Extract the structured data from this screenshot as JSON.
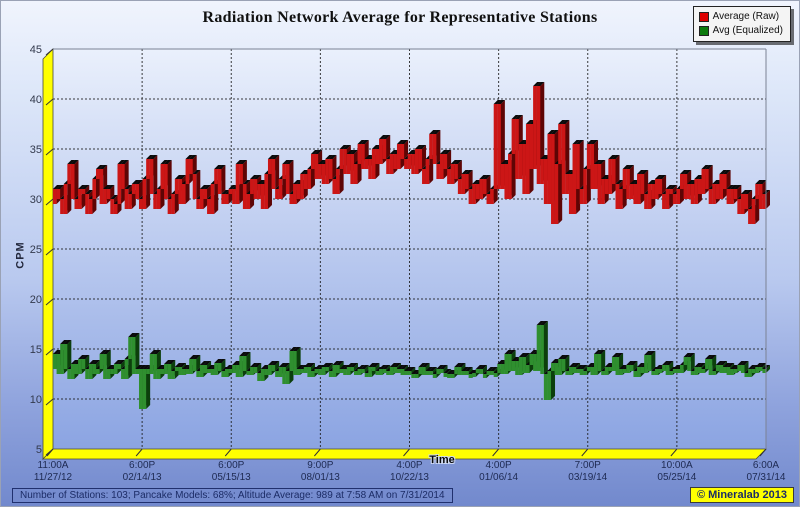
{
  "status_bar": {
    "text": "Number of Stations: 103; Pancake Models: 68%; Altitude Average: 989 at 7:58 AM on 7/31/2014"
  },
  "copyright_badge": {
    "text": "© Mineralab 2013"
  },
  "colors": {
    "wall_yellow": "#ffff00",
    "wall_stroke": "#4a4a3a",
    "plot_grad_top": "#eaf0fc",
    "plot_grad_bottom": "#8ba4e2",
    "grid": "#1a1a1a",
    "cap_black": "#0a0a0a",
    "border_gray": "#7b8294",
    "y_label_color": "#333a4d",
    "x_label_color": "#1e2a52"
  },
  "chart_data": {
    "type": "line",
    "style": "3d-step-ribbon",
    "title": "Radiation Network Average for Representative Stations",
    "xlabel": "Time",
    "ylabel": "CPM",
    "ylim": [
      5,
      45
    ],
    "grid": true,
    "legend_position": "top-right",
    "y_ticks": [
      5,
      10,
      15,
      20,
      25,
      30,
      35,
      40,
      45
    ],
    "x_ticks": [
      {
        "time": "11:00A",
        "date": "11/27/12"
      },
      {
        "time": "6:00P",
        "date": "02/14/13"
      },
      {
        "time": "6:00P",
        "date": "05/15/13"
      },
      {
        "time": "9:00P",
        "date": "08/01/13"
      },
      {
        "time": "4:00P",
        "date": "10/22/13"
      },
      {
        "time": "4:00P",
        "date": "01/06/14"
      },
      {
        "time": "7:00P",
        "date": "03/19/14"
      },
      {
        "time": "10:00A",
        "date": "05/25/14"
      },
      {
        "time": "6:00A",
        "date": "07/31/14"
      }
    ],
    "series": [
      {
        "name": "Average (Raw)",
        "legend_color": "#dd0000",
        "color": "#cc1616",
        "dark": "#5e0505",
        "values": [
          29.5,
          31,
          30,
          28.5,
          31.5,
          33.5,
          30,
          29,
          31,
          30.5,
          28.5,
          30,
          32,
          33,
          29.5,
          31,
          30,
          28.5,
          29.5,
          33.5,
          31,
          29,
          30.5,
          31.5,
          30,
          29,
          32,
          34,
          30.5,
          29,
          31,
          33.5,
          30,
          28.5,
          30.5,
          32,
          29.5,
          31.5,
          34,
          32.5,
          30,
          29,
          31,
          30,
          28.5,
          31.5,
          33,
          30.5,
          29.5,
          30.5,
          31,
          29.5,
          33.5,
          31.5,
          29,
          30.5,
          32,
          30,
          31.5,
          29,
          32.5,
          34,
          31,
          30,
          32,
          33.5,
          30.5,
          29.5,
          31.5,
          30,
          32.5,
          31,
          33,
          34.5,
          32,
          33.5,
          31.5,
          34,
          32,
          30.5,
          33,
          35,
          32.5,
          34.5,
          31.5,
          33.5,
          35.5,
          33,
          34,
          32,
          35,
          33.5,
          36,
          34,
          32.5,
          34.5,
          33,
          35.5,
          34,
          33,
          34.5,
          32.5,
          35,
          33,
          31.5,
          34,
          36.5,
          33.5,
          32,
          34.5,
          33,
          31.5,
          33.5,
          32,
          30.5,
          32.5,
          31,
          29.5,
          31.5,
          30,
          32,
          30.5,
          29.5,
          31,
          39.5,
          31,
          33.5,
          30,
          34.5,
          38,
          32,
          35.5,
          30.5,
          37.5,
          33,
          41.3,
          31.5,
          34,
          29.5,
          36.5,
          27.5,
          33.5,
          37.5,
          30.5,
          32.5,
          28.5,
          35.5,
          31,
          29.5,
          33,
          35.5,
          31,
          33.5,
          29.5,
          32,
          30.5,
          34,
          31.5,
          29,
          31,
          33,
          30,
          31.5,
          29.5,
          32.5,
          30.5,
          29,
          31.5,
          30,
          32,
          30.5,
          29,
          31,
          30.5,
          29.5,
          31,
          32.5,
          30,
          31.5,
          29.5,
          32,
          30.5,
          33,
          31,
          29.5,
          31.5,
          30,
          32.5,
          31,
          29.5,
          31,
          30,
          28.5,
          30.5,
          29,
          27.5,
          30,
          31.5,
          29,
          30.5
        ]
      },
      {
        "name": "Avg (Equalized)",
        "legend_color": "#0c7a0c",
        "color": "#2f8f2f",
        "dark": "#0c3f0c",
        "values": [
          13,
          14.5,
          12.5,
          15.5,
          13,
          12,
          13.5,
          12.5,
          14,
          13,
          12,
          13.5,
          12.5,
          13,
          14.5,
          12,
          13,
          12.5,
          13.5,
          13,
          12,
          14,
          16.2,
          12.5,
          13,
          9,
          13,
          12.5,
          14.5,
          12,
          13,
          12.5,
          13.5,
          12,
          12.8,
          13.2,
          12.4,
          13,
          12.5,
          14,
          12.8,
          12.2,
          13.4,
          12.6,
          13,
          12.4,
          13.6,
          12.8,
          12.2,
          13,
          12.6,
          13.4,
          12.2,
          14.3,
          12.8,
          12.4,
          13.2,
          12.6,
          11.8,
          13,
          12.4,
          13.4,
          12.8,
          12.2,
          13.2,
          11.5,
          12.8,
          14.8,
          12.4,
          13,
          12.6,
          13.2,
          12.2,
          12.8,
          13,
          12.4,
          13.2,
          12.8,
          12.2,
          13.4,
          12.6,
          13,
          12.4,
          13.2,
          12.8,
          12.4,
          13,
          12.6,
          12.2,
          13.2,
          12.8,
          12.4,
          13,
          12.8,
          12.4,
          13.2,
          12.6,
          13,
          12.4,
          12.8,
          12.5,
          12.5,
          12.5,
          13.2,
          12.4,
          12.8,
          12.5,
          12.5,
          13,
          12.6,
          12.5,
          12.5,
          12.5,
          13.2,
          12.4,
          12.8,
          12.5,
          12.5,
          12.6,
          13,
          12.5,
          12.5,
          12.8,
          12.4,
          12.6,
          13.5,
          12.5,
          14.5,
          12.8,
          13.8,
          12.4,
          14.2,
          12.6,
          13.4,
          14.5,
          12.8,
          17.4,
          12.5,
          9.9,
          12.8,
          13.6,
          12.4,
          14,
          12.8,
          12.4,
          13.2,
          12.6,
          13,
          12.4,
          12.8,
          13.2,
          12.4,
          14.5,
          12.8,
          12.4,
          13.2,
          12.8,
          14.2,
          12.4,
          13,
          12.6,
          13.4,
          12.8,
          12.2,
          13.2,
          12.6,
          14.4,
          12.8,
          12.4,
          13,
          12.8,
          13.4,
          12.4,
          12.8,
          13,
          12.6,
          13.4,
          14.2,
          12.8,
          12.4,
          13.2,
          12.6,
          13,
          14,
          12.4,
          12.8,
          13.4,
          12.6,
          13.2,
          12.4,
          13,
          12.8,
          13.4,
          12.6,
          12.2,
          13,
          12.6,
          13.2,
          12.8,
          13
        ]
      }
    ]
  }
}
